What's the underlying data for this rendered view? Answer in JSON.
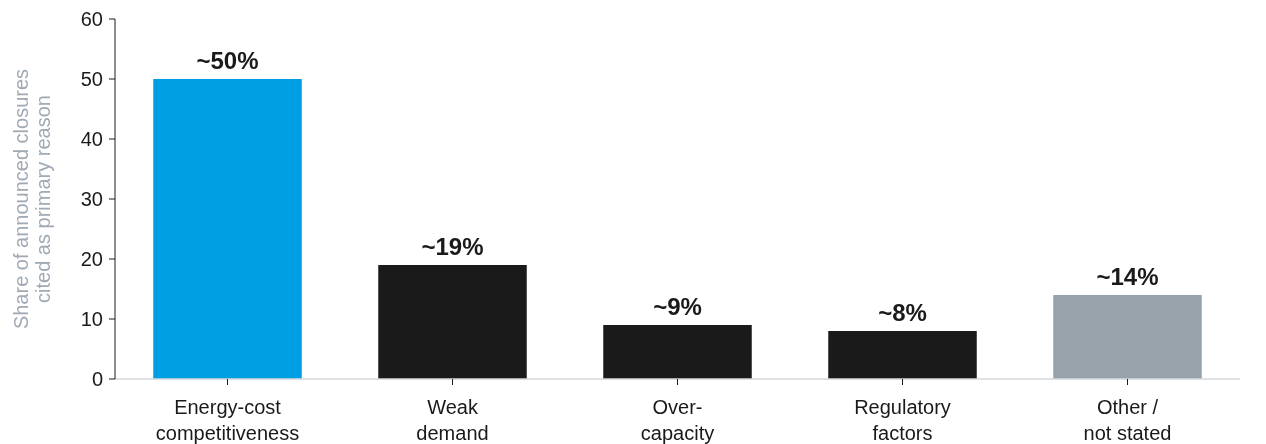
{
  "chart_data": {
    "type": "bar",
    "ylabel": "Share of announced closures\ncited as primary reason",
    "categories": [
      "Energy-cost\ncompetitiveness",
      "Weak\ndemand",
      "Over-\ncapacity",
      "Regulatory\nfactors",
      "Other /\nnot stated"
    ],
    "values": [
      50,
      19,
      9,
      8,
      14
    ],
    "colors": [
      "#009fe3",
      "#1a1a1a",
      "#1a1a1a",
      "#1a1a1a",
      "#98a2ab"
    ],
    "value_labels": [
      "~50%",
      "~19%",
      "~9%",
      "~8%",
      "~14%"
    ],
    "ylim": [
      0,
      60
    ],
    "yticks": [
      0,
      10,
      20,
      30,
      40,
      50,
      60
    ],
    "grid": false
  }
}
